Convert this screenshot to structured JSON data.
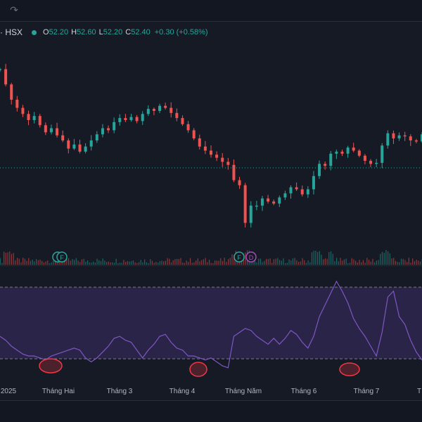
{
  "toolbar": {
    "redo_icon": "↷"
  },
  "legend": {
    "symbol": "· HSX",
    "o_label": "O",
    "o_value": "52.20",
    "h_label": "H",
    "h_value": "52.60",
    "l_label": "L",
    "l_value": "52.20",
    "c_label": "C",
    "c_value": "52.40",
    "change": "+0.30 (+0.58%)"
  },
  "colors": {
    "up": "#26a69a",
    "down": "#ef5350",
    "rsi": "#7e57c2",
    "band": "#2a2448",
    "circle": "#f23645"
  },
  "markers": {
    "f1": "F",
    "f2": "F",
    "d1": "D"
  },
  "x_axis": {
    "labels": [
      "2025",
      "Tháng Hai",
      "Tháng 3",
      "Tháng 4",
      "Tháng Năm",
      "Tháng 6",
      "Tháng 7",
      "T"
    ]
  },
  "chart_data": {
    "type": "line",
    "series": [
      {
        "values": [
          63.0,
          61.5,
          60.0,
          59.2,
          58.6,
          58.0,
          58.4,
          57.5,
          56.8,
          57.2,
          56.5,
          56.0,
          55.2,
          55.6,
          54.9,
          55.4,
          56.0,
          56.6,
          57.2,
          57.0,
          57.8,
          58.2,
          58.0,
          58.3,
          57.9,
          58.6,
          59.1,
          58.9,
          59.4,
          59.2,
          58.7,
          58.2,
          57.6,
          57.0,
          56.2,
          55.4,
          55.0,
          54.6,
          54.3,
          53.9,
          53.6,
          52.1,
          51.6,
          47.9,
          49.6,
          49.6,
          50.3,
          50.0,
          49.8,
          50.4,
          50.8,
          51.4,
          51.2,
          50.7,
          51.2,
          52.5,
          53.7,
          53.5,
          54.7,
          54.9,
          54.7,
          55.3,
          55.0,
          54.5,
          54.0,
          53.7,
          53.8,
          55.5,
          56.7,
          56.2,
          56.5,
          56.4,
          56.0,
          55.9,
          56.6
        ]
      },
      {
        "values": [
          40,
          38,
          35,
          33,
          31,
          30,
          30,
          29,
          28,
          30,
          31,
          32,
          33,
          34,
          33,
          29,
          27,
          29,
          32,
          35,
          39,
          40,
          38,
          37,
          33,
          29,
          33,
          36,
          40,
          41,
          37,
          34,
          33,
          30,
          30,
          29,
          28,
          29,
          27,
          25,
          24,
          40,
          42,
          44,
          43,
          40,
          38,
          36,
          39,
          36,
          39,
          43,
          41,
          37,
          34,
          40,
          50,
          56,
          62,
          68,
          63,
          57,
          49,
          44,
          40,
          35,
          30,
          42,
          60,
          63,
          50,
          46,
          38,
          32,
          28
        ]
      }
    ],
    "legend": "none"
  }
}
